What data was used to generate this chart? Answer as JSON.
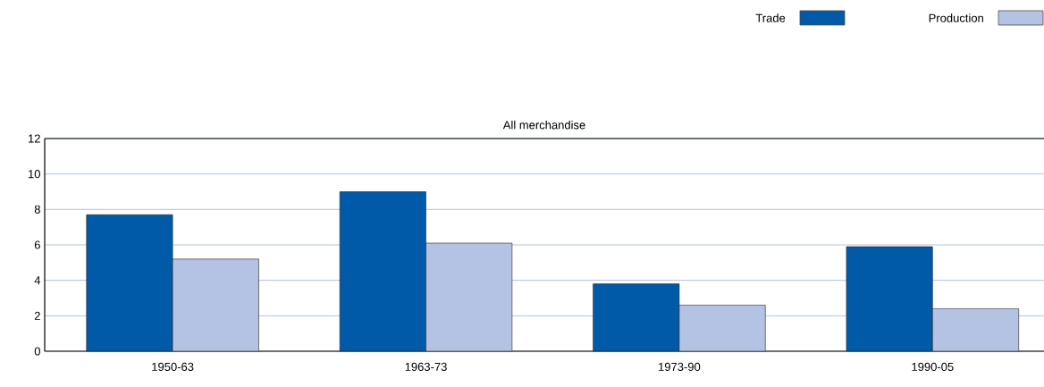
{
  "chart_data": {
    "type": "bar",
    "title": "All merchandise",
    "categories": [
      "1950-63",
      "1963-73",
      "1973-90",
      "1990-05"
    ],
    "series": [
      {
        "name": "Trade",
        "color": "#005aa8",
        "values": [
          7.7,
          9.0,
          3.8,
          5.9
        ]
      },
      {
        "name": "Production",
        "color": "#b4c3e3",
        "values": [
          5.2,
          6.1,
          2.6,
          2.4
        ]
      }
    ],
    "ylim": [
      0,
      12
    ],
    "yticks": [
      0,
      2,
      4,
      6,
      8,
      10,
      12
    ],
    "grid": "y",
    "legend": "top right"
  }
}
